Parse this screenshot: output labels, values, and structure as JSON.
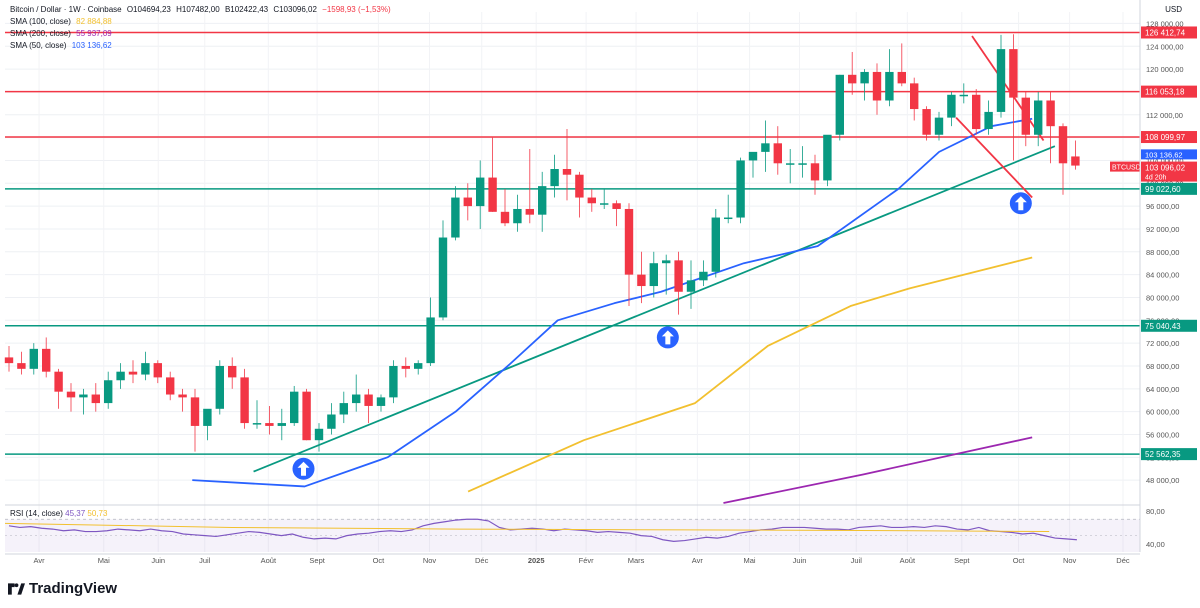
{
  "header": {
    "symbol": "Bitcoin / Dollar · 1W · Coinbase",
    "open": "O104694,23",
    "high": "H107482,00",
    "low": "B102422,43",
    "close": "C103096,02",
    "change": "−1598,93 (−1,53%)",
    "change_color": "#f23645",
    "sma100_label": "SMA (100, close)",
    "sma100_value": "82 884,88",
    "sma200_label": "SMA (200, close)",
    "sma200_value": "55 937,09",
    "sma50_label": "SMA (50, close)",
    "sma50_value": "103 136,62",
    "currency": "USD"
  },
  "rsi": {
    "label": "RSI (14, close)",
    "value": "45,37",
    "value2": "50,73",
    "ticks": [
      "80,00",
      "40,00"
    ],
    "ylim": [
      30,
      85
    ],
    "upper": 70,
    "lower": 30,
    "values": [
      62,
      60,
      61,
      59,
      58,
      56,
      57,
      55,
      55,
      56,
      58,
      57,
      56,
      58,
      56,
      55,
      52,
      51,
      50,
      49,
      51,
      53,
      55,
      54,
      52,
      50,
      52,
      48,
      46,
      47,
      46,
      50,
      52,
      53,
      55,
      56,
      55,
      57,
      62,
      65,
      67,
      69,
      70,
      70,
      68,
      60,
      57,
      58,
      59,
      58,
      56,
      58,
      57,
      56,
      54,
      55,
      54,
      53,
      50,
      49,
      45,
      43,
      44,
      46,
      48,
      47,
      49,
      53,
      55,
      57,
      58,
      60,
      60,
      60,
      59,
      58,
      58,
      57,
      60,
      61,
      62,
      60,
      60,
      61,
      60,
      62,
      61,
      58,
      57,
      60,
      56,
      55,
      54,
      52,
      53,
      50,
      47,
      46,
      45
    ]
  },
  "chart_data": {
    "type": "candlestick",
    "title": "Bitcoin / Dollar · 1W · Coinbase",
    "ylabel": "USD",
    "ylim": [
      44000,
      130000
    ],
    "x_start": "2024-03-25",
    "interval": "1W",
    "x_ticks": [
      "Avr",
      "Mai",
      "Juin",
      "Juil",
      "Août",
      "Sept",
      "Oct",
      "Nov",
      "Déc",
      "2025",
      "Févr",
      "Mars",
      "Avr",
      "Mai",
      "Juin",
      "Juil",
      "Août",
      "Sept",
      "Oct",
      "Nov",
      "Déc"
    ],
    "y_ticks": [
      128000,
      124000,
      120000,
      116000,
      112000,
      108000,
      104000,
      100000,
      96000,
      92000,
      88000,
      84000,
      80000,
      76000,
      72000,
      68000,
      64000,
      60000,
      56000,
      52000,
      48000
    ],
    "y_tick_labels": [
      "128 000,00",
      "124 000,00",
      "120 000,00",
      "116 000,00",
      "112 000,00",
      "108 000,00",
      "104 000,00",
      "100 000,00",
      "96 000,00",
      "92 000,00",
      "88 000,00",
      "84 000,00",
      "80 000,00",
      "76 000,00",
      "72 000,00",
      "68 000,00",
      "64 000,00",
      "60 000,00",
      "56 000,00",
      "52 000,00",
      "48 000,00"
    ],
    "candles": [
      [
        69500,
        71500,
        67000,
        68500
      ],
      [
        68500,
        70500,
        66500,
        67500
      ],
      [
        67500,
        72000,
        66500,
        71000
      ],
      [
        71000,
        73000,
        66000,
        67000
      ],
      [
        67000,
        67500,
        60500,
        63500
      ],
      [
        63500,
        65000,
        60000,
        62500
      ],
      [
        62500,
        64000,
        59500,
        63000
      ],
      [
        63000,
        65000,
        60000,
        61500
      ],
      [
        61500,
        67000,
        60500,
        65500
      ],
      [
        65500,
        68500,
        64000,
        67000
      ],
      [
        67000,
        69000,
        65000,
        66500
      ],
      [
        66500,
        70500,
        65500,
        68500
      ],
      [
        68500,
        69000,
        65000,
        66000
      ],
      [
        66000,
        67000,
        62000,
        63000
      ],
      [
        63000,
        64000,
        60000,
        62500
      ],
      [
        62500,
        64000,
        53000,
        57500
      ],
      [
        57500,
        60000,
        55000,
        60500
      ],
      [
        60500,
        69000,
        59500,
        68000
      ],
      [
        68000,
        69500,
        64000,
        66000
      ],
      [
        66000,
        67500,
        57000,
        58000
      ],
      [
        58000,
        62000,
        57000,
        58000
      ],
      [
        58000,
        61000,
        56000,
        57500
      ],
      [
        57500,
        60500,
        55000,
        58000
      ],
      [
        58000,
        64500,
        57500,
        63500
      ],
      [
        63500,
        64000,
        55000,
        55000
      ],
      [
        55000,
        58000,
        53000,
        57000
      ],
      [
        57000,
        61500,
        56000,
        59500
      ],
      [
        59500,
        63500,
        58000,
        61500
      ],
      [
        61500,
        66500,
        60000,
        63000
      ],
      [
        63000,
        64000,
        58000,
        61000
      ],
      [
        61000,
        63000,
        60000,
        62500
      ],
      [
        62500,
        69000,
        61500,
        68000
      ],
      [
        68000,
        69500,
        66000,
        67500
      ],
      [
        67500,
        69000,
        66500,
        68500
      ],
      [
        68500,
        80000,
        68000,
        76500
      ],
      [
        76500,
        93500,
        76000,
        90500
      ],
      [
        90500,
        99500,
        90000,
        97500
      ],
      [
        97500,
        100000,
        93500,
        96000
      ],
      [
        96000,
        104000,
        92000,
        101000
      ],
      [
        101000,
        108000,
        95000,
        95000
      ],
      [
        95000,
        99000,
        92500,
        93000
      ],
      [
        93000,
        98000,
        91500,
        95500
      ],
      [
        95500,
        106000,
        93000,
        94500
      ],
      [
        94500,
        102000,
        91500,
        99500
      ],
      [
        99500,
        105000,
        97500,
        102500
      ],
      [
        102500,
        109500,
        97000,
        101500
      ],
      [
        101500,
        102000,
        94000,
        97500
      ],
      [
        97500,
        99000,
        95000,
        96500
      ],
      [
        96500,
        99000,
        95500,
        96500
      ],
      [
        96500,
        97000,
        92500,
        95500
      ],
      [
        95500,
        96500,
        78500,
        84000
      ],
      [
        84000,
        88000,
        79000,
        82000
      ],
      [
        82000,
        88000,
        80000,
        86000
      ],
      [
        86000,
        87500,
        80500,
        86500
      ],
      [
        86500,
        88000,
        77000,
        81000
      ],
      [
        81000,
        86500,
        78000,
        83000
      ],
      [
        83000,
        86500,
        82000,
        84500
      ],
      [
        84500,
        95500,
        83500,
        94000
      ],
      [
        94000,
        98000,
        93000,
        94000
      ],
      [
        94000,
        104500,
        93000,
        104000
      ],
      [
        104000,
        105000,
        101000,
        105500
      ],
      [
        105500,
        111000,
        102000,
        107000
      ],
      [
        107000,
        110000,
        101500,
        103500
      ],
      [
        103500,
        106000,
        100000,
        103500
      ],
      [
        103500,
        106500,
        101000,
        103500
      ],
      [
        103500,
        105000,
        98000,
        100500
      ],
      [
        100500,
        108000,
        99500,
        108500
      ],
      [
        108500,
        119000,
        107500,
        119000
      ],
      [
        119000,
        123000,
        115500,
        117500
      ],
      [
        117500,
        120000,
        114500,
        119500
      ],
      [
        119500,
        121000,
        112000,
        114500
      ],
      [
        114500,
        123500,
        113500,
        119500
      ],
      [
        119500,
        124500,
        117000,
        117500
      ],
      [
        117500,
        118500,
        111000,
        113000
      ],
      [
        113000,
        113500,
        107500,
        108500
      ],
      [
        108500,
        112500,
        107500,
        111500
      ],
      [
        111500,
        116000,
        110000,
        115500
      ],
      [
        115500,
        117500,
        114000,
        115500
      ],
      [
        115500,
        116500,
        108500,
        109500
      ],
      [
        109500,
        114500,
        108500,
        112500
      ],
      [
        112500,
        126000,
        111500,
        123500
      ],
      [
        123500,
        126100,
        104000,
        115000
      ],
      [
        115000,
        116000,
        106500,
        108500
      ],
      [
        108500,
        116000,
        106500,
        114500
      ],
      [
        114500,
        116000,
        103500,
        110000
      ],
      [
        110000,
        110500,
        98000,
        103500
      ],
      [
        104700,
        107500,
        102400,
        103100
      ]
    ],
    "sma50": [
      [
        0.165,
        48000
      ],
      [
        0.264,
        46900
      ],
      [
        0.337,
        52000
      ],
      [
        0.397,
        60000
      ],
      [
        0.443,
        68000
      ],
      [
        0.487,
        76000
      ],
      [
        0.537,
        79000
      ],
      [
        0.578,
        81000
      ],
      [
        0.651,
        86000
      ],
      [
        0.716,
        89000
      ],
      [
        0.787,
        99000
      ],
      [
        0.823,
        105500
      ],
      [
        0.869,
        110000
      ],
      [
        0.905,
        111300
      ]
    ],
    "sma100": [
      [
        0.408,
        46000
      ],
      [
        0.51,
        55000
      ],
      [
        0.608,
        61500
      ],
      [
        0.672,
        71500
      ],
      [
        0.745,
        78500
      ],
      [
        0.797,
        81600
      ],
      [
        0.905,
        87000
      ]
    ],
    "sma200": [
      [
        0.633,
        44000
      ],
      [
        0.756,
        49000
      ],
      [
        0.905,
        55500
      ]
    ],
    "trendline": [
      [
        0.219,
        49500
      ],
      [
        0.925,
        106500
      ]
    ],
    "resistance_lines": [
      {
        "points": [
          [
            0.852,
            125800
          ],
          [
            0.915,
            107500
          ]
        ]
      },
      {
        "points": [
          [
            0.838,
            111500
          ],
          [
            0.905,
            97500
          ]
        ]
      }
    ],
    "levels": [
      {
        "value": 126412.74,
        "label": "126 412,74",
        "color": "#f23645"
      },
      {
        "value": 116053.18,
        "label": "116 053,18",
        "color": "#f23645"
      },
      {
        "value": 108099.97,
        "label": "108 099,97",
        "color": "#f23645"
      },
      {
        "value": 99022.6,
        "label": "99 022,60",
        "color": "#089981"
      },
      {
        "value": 75040.43,
        "label": "75 040,43",
        "color": "#089981"
      },
      {
        "value": 52562.35,
        "label": "52 562,35",
        "color": "#089981"
      }
    ],
    "last_price": {
      "label": "BTCUSD",
      "value": "103 096,02",
      "countdown": "4d 20h",
      "price": 103096
    },
    "sma50_tag": {
      "value": "103 136,62",
      "price": 103136
    },
    "arrows": [
      [
        0.263,
        50000
      ],
      [
        0.584,
        73000
      ],
      [
        0.895,
        96500
      ]
    ],
    "colors": {
      "up": "#089981",
      "down": "#f23645",
      "sma50": "#2962ff",
      "sma100": "#f2c02f",
      "sma200": "#9c27b0",
      "trend": "#089981",
      "rsi": "#7e57c2",
      "arrow": "#2962ff"
    }
  },
  "footer": {
    "brand": "TradingView"
  }
}
